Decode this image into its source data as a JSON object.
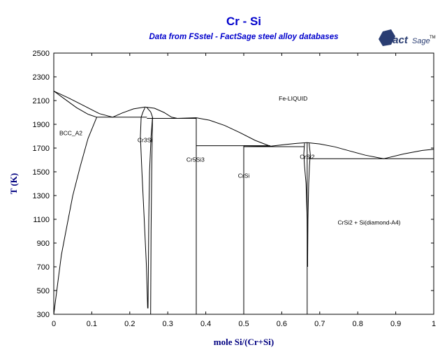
{
  "title": "Cr - Si",
  "subtitle": "Data from FSstel - FactSage steel alloy databases",
  "logo": {
    "main": "Fact",
    "sub": "Sage",
    "mark": "TM"
  },
  "axes": {
    "xlabel": "mole Si/(Cr+Si)",
    "ylabel": "T (K)",
    "xlim": [
      0,
      1
    ],
    "ylim": [
      300,
      2500
    ],
    "xticks": [
      "0",
      "0.1",
      "0.2",
      "0.3",
      "0.4",
      "0.5",
      "0.6",
      "0.7",
      "0.8",
      "0.9",
      "1"
    ],
    "yticks": [
      "300",
      "500",
      "700",
      "900",
      "1100",
      "1300",
      "1500",
      "1700",
      "1900",
      "2100",
      "2300",
      "2500"
    ]
  },
  "regions": [
    {
      "label": "Fe-LIQUID",
      "x": 0.63,
      "y": 2100
    },
    {
      "label": "BCC_A2",
      "x": 0.045,
      "y": 1810
    },
    {
      "label": "Cr3Si",
      "x": 0.24,
      "y": 1750
    },
    {
      "label": "Cr5Si3",
      "x": 0.373,
      "y": 1585
    },
    {
      "label": "CrSi",
      "x": 0.5,
      "y": 1450
    },
    {
      "label": "CrSi2",
      "x": 0.667,
      "y": 1610
    },
    {
      "label": "CrSi2 + Si(diamond-A4)",
      "x": 0.83,
      "y": 1055
    }
  ],
  "lines": [
    {
      "name": "liquidus-bcc-upper",
      "points": [
        [
          0,
          2180
        ],
        [
          0.04,
          2120
        ],
        [
          0.08,
          2055
        ],
        [
          0.12,
          1990
        ],
        [
          0.155,
          1960
        ]
      ]
    },
    {
      "name": "solidus-bcc",
      "points": [
        [
          0,
          2180
        ],
        [
          0.03,
          2110
        ],
        [
          0.06,
          2040
        ],
        [
          0.09,
          1985
        ],
        [
          0.113,
          1960
        ]
      ]
    },
    {
      "name": "liquidus-cr3si",
      "points": [
        [
          0.155,
          1960
        ],
        [
          0.18,
          1995
        ],
        [
          0.21,
          2030
        ],
        [
          0.24,
          2045
        ],
        [
          0.265,
          2035
        ],
        [
          0.29,
          2000
        ],
        [
          0.31,
          1960
        ],
        [
          0.325,
          1950
        ]
      ]
    },
    {
      "name": "liquidus-cr5si3",
      "points": [
        [
          0.325,
          1950
        ],
        [
          0.375,
          1955
        ],
        [
          0.41,
          1935
        ],
        [
          0.45,
          1890
        ],
        [
          0.49,
          1830
        ],
        [
          0.53,
          1765
        ],
        [
          0.57,
          1715
        ]
      ]
    },
    {
      "name": "liquidus-crsi",
      "points": [
        [
          0.5,
          1720
        ],
        [
          0.57,
          1715
        ]
      ]
    },
    {
      "name": "liquidus-crsi2-left",
      "points": [
        [
          0.57,
          1715
        ],
        [
          0.61,
          1730
        ],
        [
          0.64,
          1740
        ],
        [
          0.667,
          1745
        ],
        [
          0.7,
          1735
        ],
        [
          0.74,
          1710
        ],
        [
          0.78,
          1675
        ],
        [
          0.82,
          1640
        ],
        [
          0.868,
          1610
        ]
      ]
    },
    {
      "name": "liquidus-si",
      "points": [
        [
          0.868,
          1610
        ],
        [
          0.92,
          1650
        ],
        [
          0.97,
          1680
        ],
        [
          1,
          1690
        ]
      ]
    },
    {
      "name": "bcc-solvus",
      "points": [
        [
          0,
          300
        ],
        [
          0.01,
          550
        ],
        [
          0.02,
          800
        ],
        [
          0.035,
          1050
        ],
        [
          0.05,
          1300
        ],
        [
          0.07,
          1550
        ],
        [
          0.09,
          1780
        ],
        [
          0.113,
          1960
        ]
      ]
    },
    {
      "name": "eutectic-bcc-cr3si",
      "points": [
        [
          0.113,
          1960
        ],
        [
          0.245,
          1960
        ]
      ]
    },
    {
      "name": "eutectic-cr3si-cr5si3",
      "points": [
        [
          0.245,
          1950
        ],
        [
          0.375,
          1950
        ]
      ]
    },
    {
      "name": "cr3si-left",
      "points": [
        [
          0.23,
          1960
        ],
        [
          0.228,
          1800
        ],
        [
          0.232,
          1500
        ],
        [
          0.238,
          1100
        ],
        [
          0.244,
          700
        ],
        [
          0.247,
          350
        ]
      ]
    },
    {
      "name": "cr3si-right",
      "points": [
        [
          0.26,
          1960
        ],
        [
          0.256,
          1800
        ],
        [
          0.252,
          1500
        ],
        [
          0.25,
          1100
        ],
        [
          0.249,
          700
        ],
        [
          0.248,
          350
        ]
      ]
    },
    {
      "name": "cr3si-top-left",
      "points": [
        [
          0.23,
          1960
        ],
        [
          0.235,
          2005
        ],
        [
          0.24,
          2040
        ]
      ]
    },
    {
      "name": "cr3si-top-right",
      "points": [
        [
          0.26,
          1960
        ],
        [
          0.255,
          2005
        ],
        [
          0.245,
          2040
        ]
      ]
    },
    {
      "name": "cr3si-right-wall",
      "points": [
        [
          0.255,
          300
        ],
        [
          0.256,
          1000
        ],
        [
          0.258,
          1600
        ],
        [
          0.26,
          1960
        ]
      ]
    },
    {
      "name": "cr5si3-line",
      "points": [
        [
          0.375,
          300
        ],
        [
          0.375,
          1955
        ]
      ]
    },
    {
      "name": "peritectic-cr5si3-crsi",
      "points": [
        [
          0.375,
          1720
        ],
        [
          0.57,
          1720
        ]
      ]
    },
    {
      "name": "crsi-line",
      "points": [
        [
          0.5,
          300
        ],
        [
          0.5,
          1720
        ]
      ]
    },
    {
      "name": "eutectic-crsi-crsi2",
      "points": [
        [
          0.5,
          1712
        ],
        [
          0.66,
          1712
        ]
      ]
    },
    {
      "name": "crsi2-left",
      "points": [
        [
          0.66,
          1740
        ],
        [
          0.658,
          1650
        ],
        [
          0.66,
          1550
        ],
        [
          0.664,
          1400
        ],
        [
          0.667,
          1100
        ],
        [
          0.668,
          700
        ]
      ]
    },
    {
      "name": "crsi2-right",
      "points": [
        [
          0.672,
          1740
        ],
        [
          0.675,
          1650
        ],
        [
          0.673,
          1550
        ],
        [
          0.671,
          1400
        ],
        [
          0.669,
          1100
        ],
        [
          0.668,
          700
        ]
      ]
    },
    {
      "name": "crsi2-line",
      "points": [
        [
          0.667,
          300
        ],
        [
          0.667,
          1745
        ]
      ]
    },
    {
      "name": "eutectic-crsi2-si",
      "points": [
        [
          0.672,
          1610
        ],
        [
          1,
          1610
        ]
      ]
    }
  ]
}
